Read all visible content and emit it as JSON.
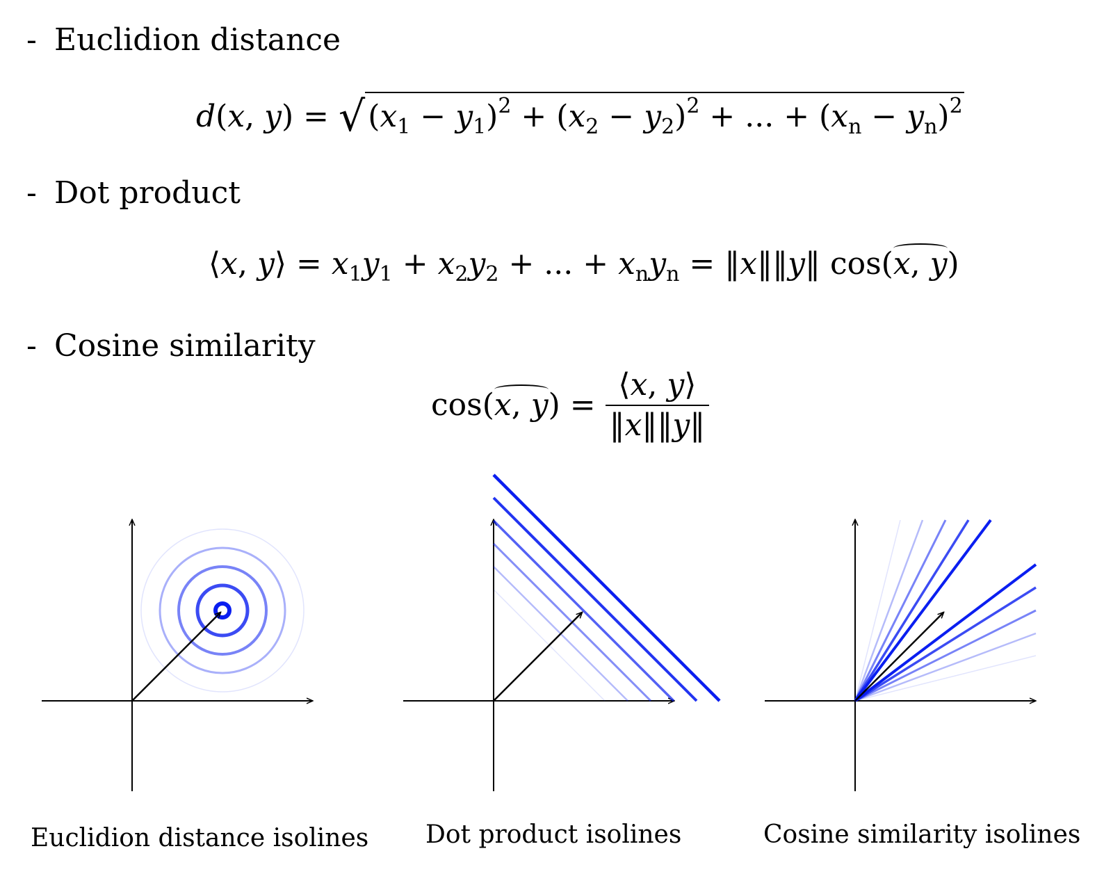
{
  "sections": [
    {
      "dash": "-",
      "title": "Euclidion distance"
    },
    {
      "dash": "-",
      "title": "Dot product"
    },
    {
      "dash": "-",
      "title": "Cosine similarity"
    }
  ],
  "formulas": {
    "euclid": "d(x, y) = √((x₁ − y₁)² + (x₂ − y₂)² + ... + (xₙ − yₙ)²)",
    "dot": "⟨x, y⟩ = x₁y₁ + x₂y₂ + ... + xₙyₙ = ‖x‖‖y‖ cos(x̂,y)",
    "cosine": "cos(x̂,y) = ⟨x, y⟩ / ‖x‖‖y‖"
  },
  "captions": {
    "euclid": "Euclidion distance isolines",
    "dot": "Dot product isolines",
    "cosine": "Cosine similarity isolines"
  },
  "colors": {
    "isoline": "#0a1ef0",
    "axis": "#000000",
    "vector": "#000000"
  }
}
